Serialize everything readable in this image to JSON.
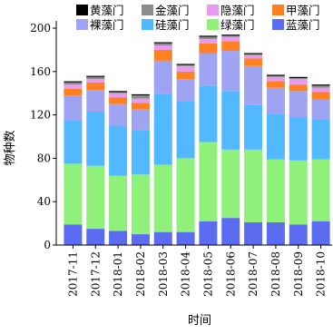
{
  "chart_data": {
    "type": "bar",
    "stacked": true,
    "xlabel": "时间",
    "ylabel": "物种数",
    "ylim": [
      0,
      200
    ],
    "yticks": [
      0,
      40,
      80,
      120,
      160,
      200
    ],
    "categories": [
      "2017-11",
      "2017-12",
      "2018-01",
      "2018-02",
      "2018-03",
      "2018-04",
      "2018-05",
      "2018-06",
      "2018-07",
      "2018-08",
      "2018-09",
      "2018-10"
    ],
    "series": [
      {
        "name": "蓝藻门",
        "color": "#5b6cf0",
        "values": [
          19,
          15,
          13,
          10,
          12,
          12,
          22,
          25,
          21,
          21,
          19,
          22
        ]
      },
      {
        "name": "绿藻门",
        "color": "#8ff07a",
        "values": [
          56,
          58,
          51,
          55,
          62,
          68,
          73,
          63,
          67,
          58,
          59,
          57
        ]
      },
      {
        "name": "硅藻门",
        "color": "#52b8ff",
        "values": [
          40,
          50,
          46,
          41,
          65,
          53,
          52,
          54,
          41,
          42,
          40,
          37
        ]
      },
      {
        "name": "裸藻门",
        "color": "#9ea3f2",
        "values": [
          23,
          20,
          20,
          19,
          31,
          20,
          30,
          37,
          36,
          24,
          24,
          18
        ]
      },
      {
        "name": "甲藻门",
        "color": "#ff8020",
        "values": [
          6,
          7,
          6,
          6,
          10,
          7,
          9,
          9,
          7,
          6,
          6,
          7
        ]
      },
      {
        "name": "隐藻门",
        "color": "#e89af0",
        "values": [
          4,
          3,
          4,
          4,
          4,
          5,
          4,
          4,
          3,
          4,
          5,
          4
        ]
      },
      {
        "name": "金藻门",
        "color": "#8c8c8c",
        "values": [
          2,
          2,
          1,
          3,
          2,
          1,
          2,
          1,
          1,
          1,
          1,
          2
        ]
      },
      {
        "name": "黄藻门",
        "color": "#000000",
        "values": [
          1,
          1,
          1,
          1,
          1,
          1,
          1,
          1,
          1,
          1,
          1,
          1
        ]
      }
    ],
    "legend": {
      "placement": "top",
      "rows": [
        [
          "黄藻门",
          "金藻门",
          "隐藻门",
          "甲藻门"
        ],
        [
          "裸藻门",
          "硅藻门",
          "绿藻门",
          "蓝藻门"
        ]
      ]
    },
    "grid": false
  }
}
